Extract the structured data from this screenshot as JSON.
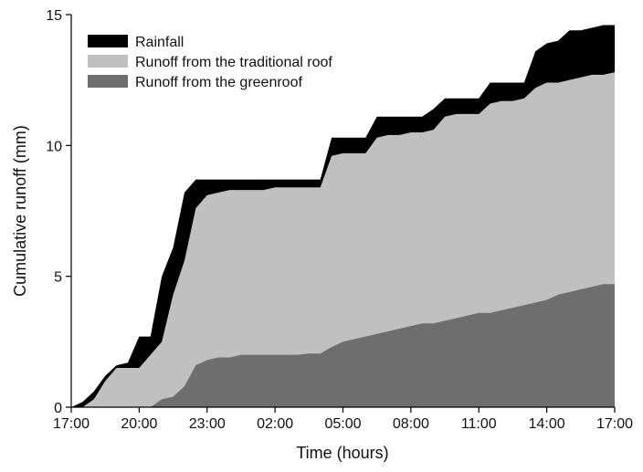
{
  "chart_data": {
    "type": "area",
    "x_label": "Time (hours)",
    "y_label": "Cumulative runoff (mm)",
    "x": [
      0,
      0.5,
      1,
      1.5,
      2,
      2.5,
      3,
      3.5,
      4,
      4.5,
      5,
      5.5,
      6,
      6.5,
      7,
      7.5,
      8,
      8.5,
      9,
      9.5,
      10,
      10.5,
      11,
      11.5,
      12,
      12.5,
      13,
      13.5,
      14,
      14.5,
      15,
      15.5,
      16,
      16.5,
      17,
      17.5,
      18,
      18.5,
      19,
      19.5,
      20,
      20.5,
      21,
      21.5,
      22,
      22.5,
      23,
      23.5,
      24
    ],
    "series": [
      {
        "name": "Rainfall",
        "color": "#000000",
        "values": [
          0,
          0.2,
          0.6,
          1.2,
          1.6,
          1.7,
          2.7,
          2.7,
          5.0,
          6.1,
          8.2,
          8.7,
          8.7,
          8.7,
          8.7,
          8.7,
          8.7,
          8.7,
          8.7,
          8.7,
          8.7,
          8.7,
          8.7,
          10.3,
          10.3,
          10.3,
          10.3,
          11.1,
          11.1,
          11.1,
          11.1,
          11.1,
          11.4,
          11.8,
          11.8,
          11.8,
          11.8,
          12.4,
          12.4,
          12.4,
          12.4,
          13.6,
          13.9,
          14.0,
          14.4,
          14.4,
          14.5,
          14.6,
          14.6
        ]
      },
      {
        "name": "Runoff from the traditional roof",
        "color": "#c0c0c0",
        "values": [
          0,
          0,
          0.3,
          1.0,
          1.5,
          1.5,
          1.5,
          2.0,
          2.5,
          4.3,
          5.6,
          7.6,
          8.1,
          8.2,
          8.3,
          8.3,
          8.3,
          8.3,
          8.4,
          8.4,
          8.4,
          8.4,
          8.4,
          9.6,
          9.7,
          9.7,
          9.7,
          10.3,
          10.4,
          10.4,
          10.5,
          10.5,
          10.6,
          11.1,
          11.2,
          11.2,
          11.2,
          11.6,
          11.7,
          11.7,
          11.8,
          12.2,
          12.4,
          12.4,
          12.5,
          12.6,
          12.7,
          12.7,
          12.8
        ]
      },
      {
        "name": "Runoff from the greenroof",
        "color": "#6e6e6e",
        "values": [
          0,
          0,
          0,
          0,
          0,
          0,
          0,
          0,
          0.3,
          0.4,
          0.8,
          1.6,
          1.8,
          1.9,
          1.9,
          2.0,
          2.0,
          2.0,
          2.0,
          2.0,
          2.0,
          2.05,
          2.05,
          2.3,
          2.5,
          2.6,
          2.7,
          2.8,
          2.9,
          3.0,
          3.1,
          3.2,
          3.2,
          3.3,
          3.4,
          3.5,
          3.6,
          3.6,
          3.7,
          3.8,
          3.9,
          4.0,
          4.1,
          4.3,
          4.4,
          4.5,
          4.6,
          4.7,
          4.7
        ]
      }
    ],
    "xlim": [
      0,
      24
    ],
    "xticks": [
      {
        "value": 0,
        "label": "17:00"
      },
      {
        "value": 3,
        "label": "20:00"
      },
      {
        "value": 6,
        "label": "23:00"
      },
      {
        "value": 9,
        "label": "02:00"
      },
      {
        "value": 12,
        "label": "05:00"
      },
      {
        "value": 15,
        "label": "08:00"
      },
      {
        "value": 18,
        "label": "11:00"
      },
      {
        "value": 21,
        "label": "14:00"
      },
      {
        "value": 24,
        "label": "17:00"
      }
    ],
    "ylim": [
      0,
      15
    ],
    "yticks": [
      0,
      5,
      10,
      15
    ],
    "grid": false,
    "legend": "upper left"
  }
}
